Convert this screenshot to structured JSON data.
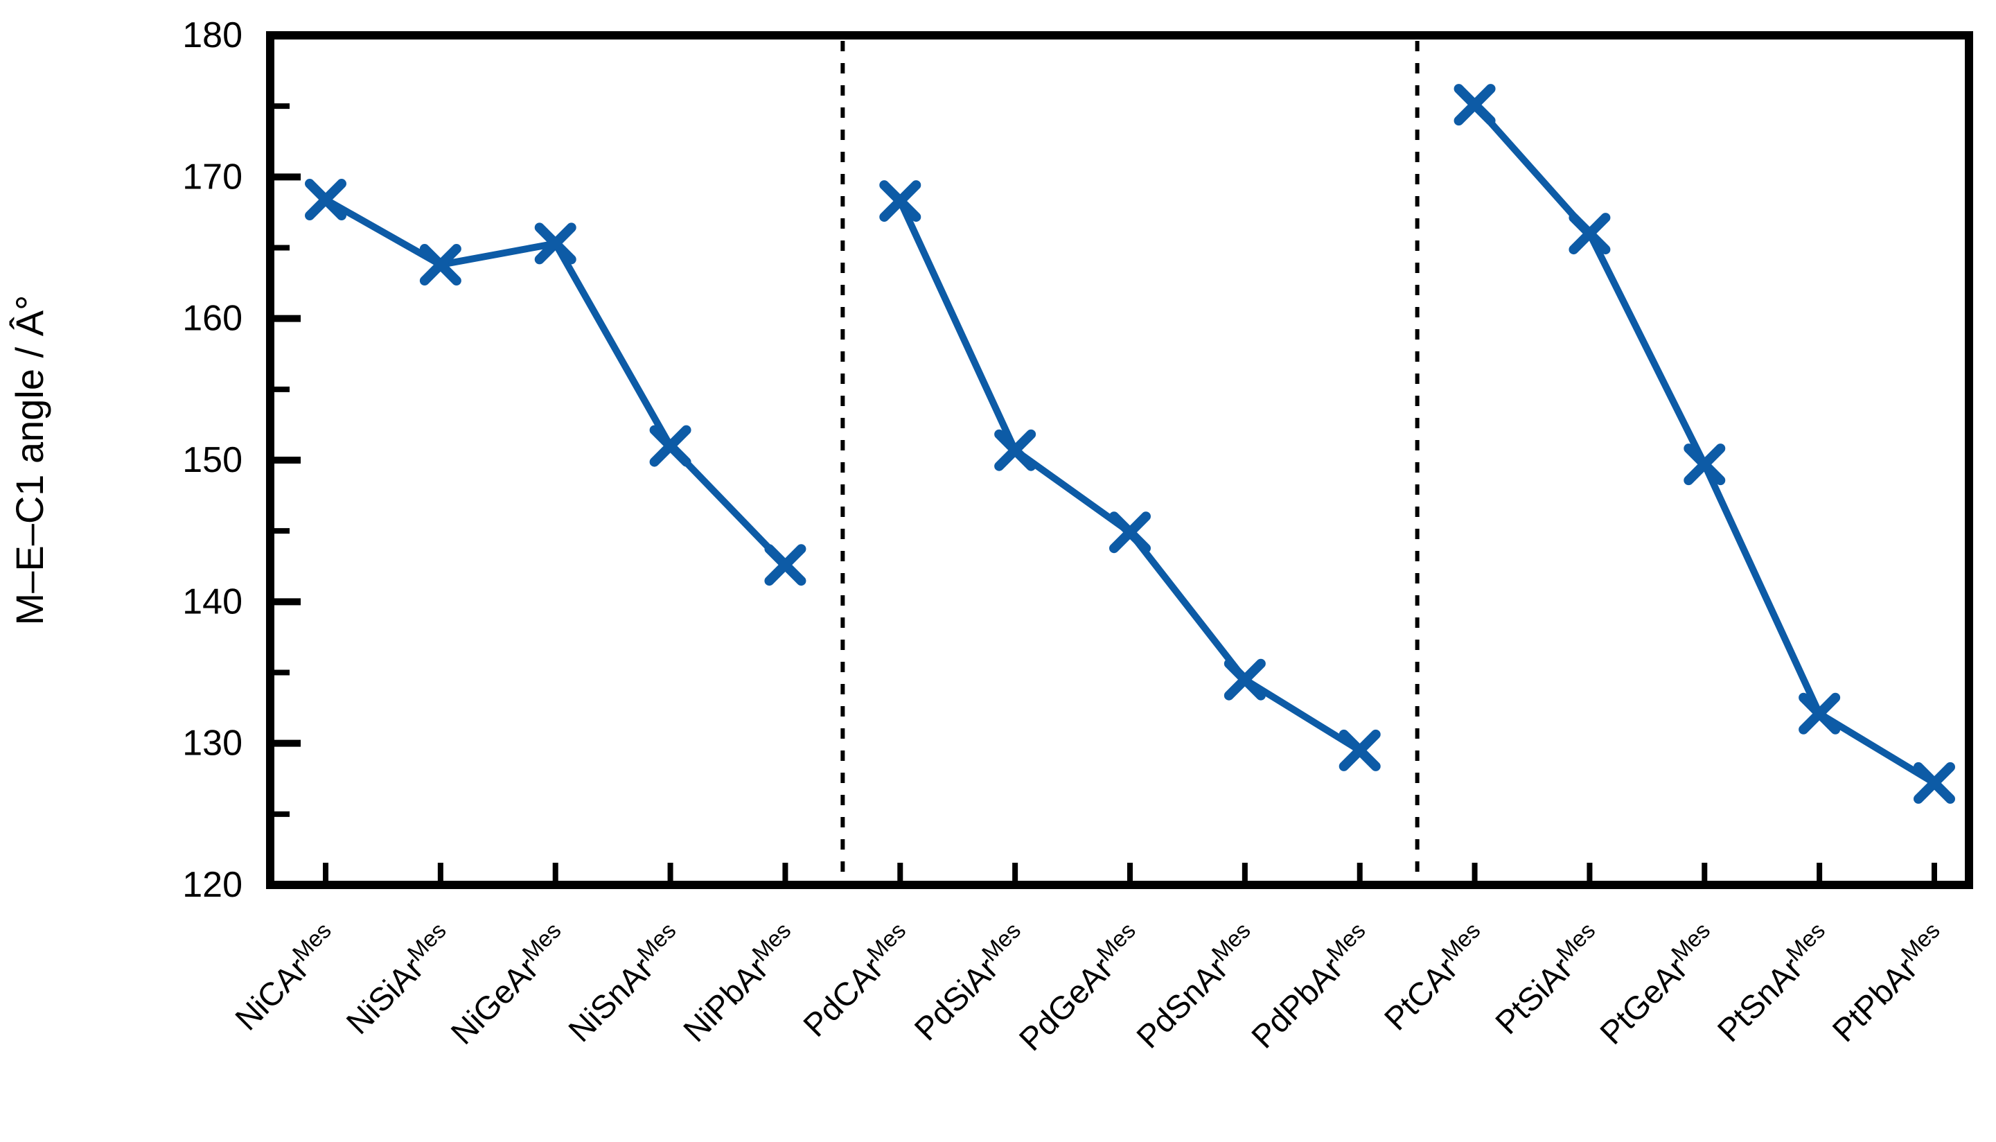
{
  "figure": {
    "background": "#ffffff",
    "axis_color": "#000000",
    "accent_color": "#0d5ba6"
  },
  "chart_data": {
    "type": "line",
    "title": "",
    "xlabel": "",
    "ylabel": "M–E–C1 angle / Â°",
    "ylim": [
      120,
      180
    ],
    "y_major_step": 10,
    "y_minor_step": 5,
    "y_tick_labels": [
      "120",
      "130",
      "140",
      "150",
      "160",
      "170",
      "180"
    ],
    "grid": "off",
    "legend": "none",
    "marker": "x",
    "categories": [
      {
        "base": "NiCAr",
        "sup": "Mes"
      },
      {
        "base": "NiSiAr",
        "sup": "Mes"
      },
      {
        "base": "NiGeAr",
        "sup": "Mes"
      },
      {
        "base": "NiSnAr",
        "sup": "Mes"
      },
      {
        "base": "NiPbAr",
        "sup": "Mes"
      },
      {
        "base": "PdCAr",
        "sup": "Mes"
      },
      {
        "base": "PdSiAr",
        "sup": "Mes"
      },
      {
        "base": "PdGeAr",
        "sup": "Mes"
      },
      {
        "base": "PdSnAr",
        "sup": "Mes"
      },
      {
        "base": "PdPbAr",
        "sup": "Mes"
      },
      {
        "base": "PtCAr",
        "sup": "Mes"
      },
      {
        "base": "PtSiAr",
        "sup": "Mes"
      },
      {
        "base": "PtGeAr",
        "sup": "Mes"
      },
      {
        "base": "PtSnAr",
        "sup": "Mes"
      },
      {
        "base": "PtPbAr",
        "sup": "Mes"
      }
    ],
    "series": [
      {
        "name": "Ni",
        "color": "#0d5ba6",
        "start_index": 0,
        "values": [
          168.4,
          163.8,
          165.3,
          151.0,
          142.6
        ]
      },
      {
        "name": "Pd",
        "color": "#0d5ba6",
        "start_index": 5,
        "values": [
          168.3,
          150.7,
          144.9,
          134.5,
          129.5
        ]
      },
      {
        "name": "Pt",
        "color": "#0d5ba6",
        "start_index": 10,
        "values": [
          175.1,
          166.0,
          149.7,
          132.1,
          127.2
        ]
      }
    ],
    "separators_after_index": [
      4,
      9
    ],
    "separator_style": "dotted"
  }
}
